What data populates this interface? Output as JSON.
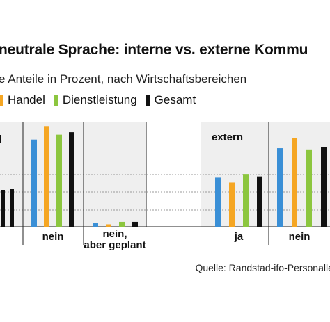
{
  "title": "neutrale Sprache: interne vs. externe Kommu",
  "subtitle": "e Anteile in Prozent, nach Wirtschaftsbereichen",
  "legend": {
    "items": [
      {
        "name": "Handel",
        "color": "#f5a623"
      },
      {
        "name": "Dienstleistung",
        "color": "#8cc63f"
      },
      {
        "name": "Gesamt",
        "color": "#111111"
      }
    ]
  },
  "source": "Quelle: Randstad-ifo-Personallei",
  "colors": {
    "series1": "#3a8fd6",
    "handel": "#f5a623",
    "dienstleistung": "#8cc63f",
    "gesamt": "#111111",
    "panel_bg": "#efefef"
  },
  "chart_data": {
    "type": "bar",
    "panels": [
      "",
      "extern"
    ],
    "categories": [
      "",
      "nein",
      "nein, aber geplant",
      "ja",
      "nein"
    ],
    "series": [
      {
        "values": [
          null,
          71,
          3,
          40,
          64
        ]
      },
      {
        "name": "Handel",
        "values": [
          null,
          82,
          2,
          36,
          72
        ]
      },
      {
        "name": "Dienstleistung",
        "values": [
          null,
          75,
          4,
          43,
          63
        ]
      },
      {
        "name": "Gesamt",
        "values": [
          null,
          77,
          4,
          41,
          65
        ]
      }
    ],
    "grid": true,
    "ylim": [
      0,
      85
    ]
  }
}
